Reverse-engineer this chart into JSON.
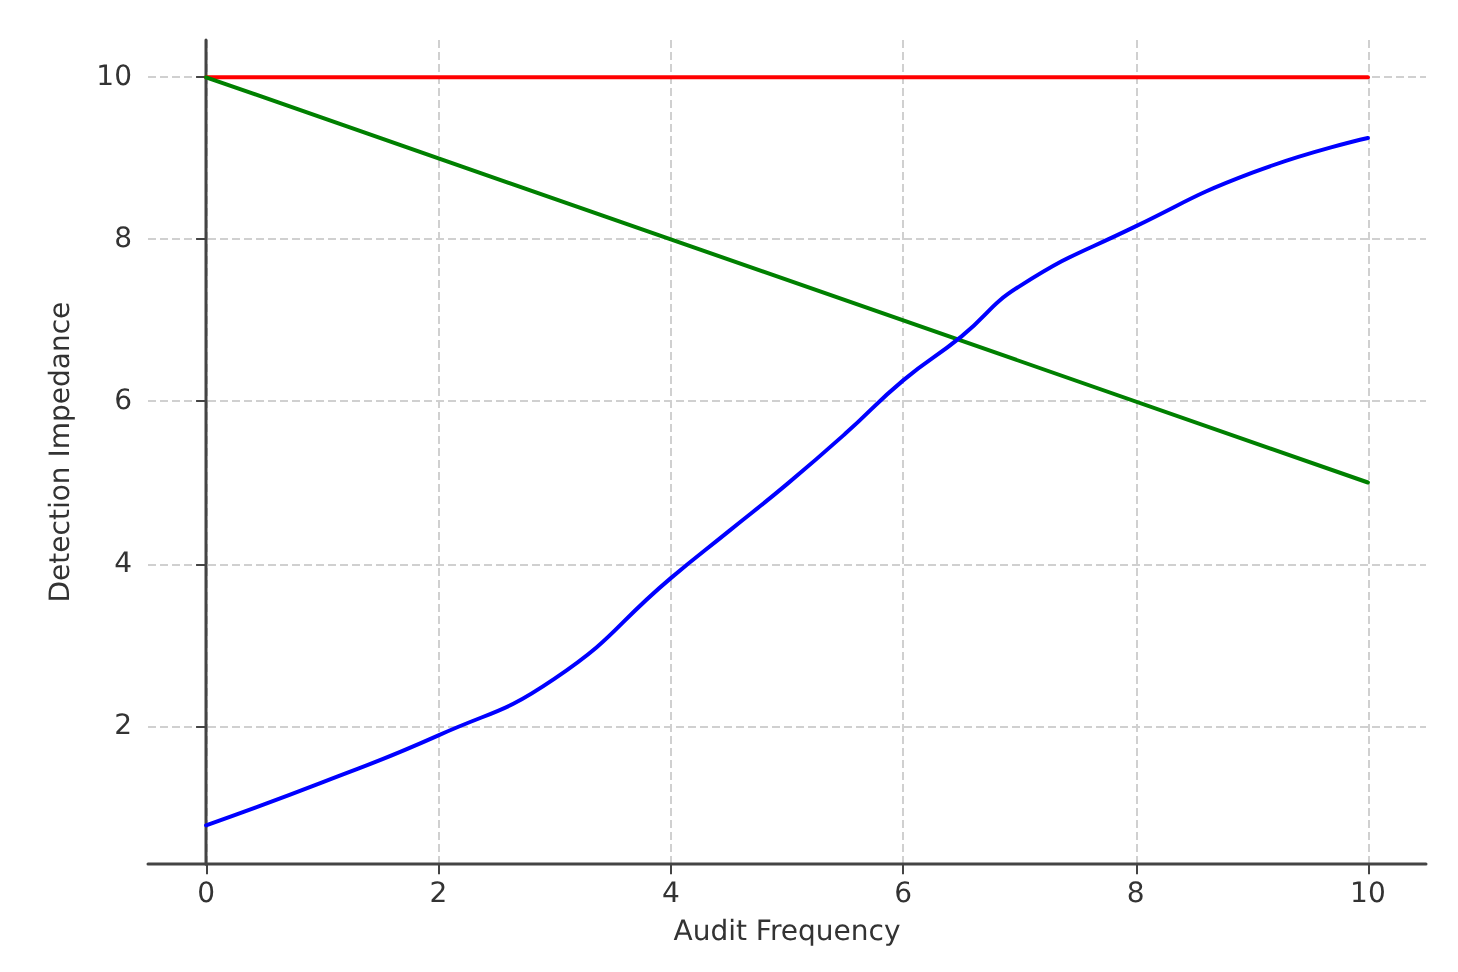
{
  "chart_data": {
    "type": "line",
    "xlabel": "Audit Frequency",
    "ylabel": "Detection Impedance",
    "xlim": [
      -0.5,
      10.5
    ],
    "xticks": [
      0,
      2,
      4,
      6,
      8,
      10
    ],
    "ylim": [
      0.29,
      10.46
    ],
    "yticks": [
      2,
      4,
      6,
      8,
      10
    ],
    "grid": true,
    "line_style": "solid",
    "marker": "none",
    "series": [
      {
        "color": "#ff0000",
        "x": [
          0,
          10
        ],
        "values": [
          10,
          10
        ]
      },
      {
        "color": "#008000",
        "x": [
          0,
          10
        ],
        "values": [
          10,
          5
        ]
      },
      {
        "color": "#0000ff",
        "x": [
          0,
          1,
          2,
          3,
          4,
          4.5,
          5,
          5.5,
          6,
          6.5,
          7,
          8,
          9,
          10
        ],
        "values": [
          0.77,
          1.3,
          1.88,
          2.58,
          3.82,
          4.4,
          4.98,
          5.6,
          6.26,
          6.8,
          7.42,
          8.16,
          8.82,
          9.25
        ]
      }
    ]
  }
}
